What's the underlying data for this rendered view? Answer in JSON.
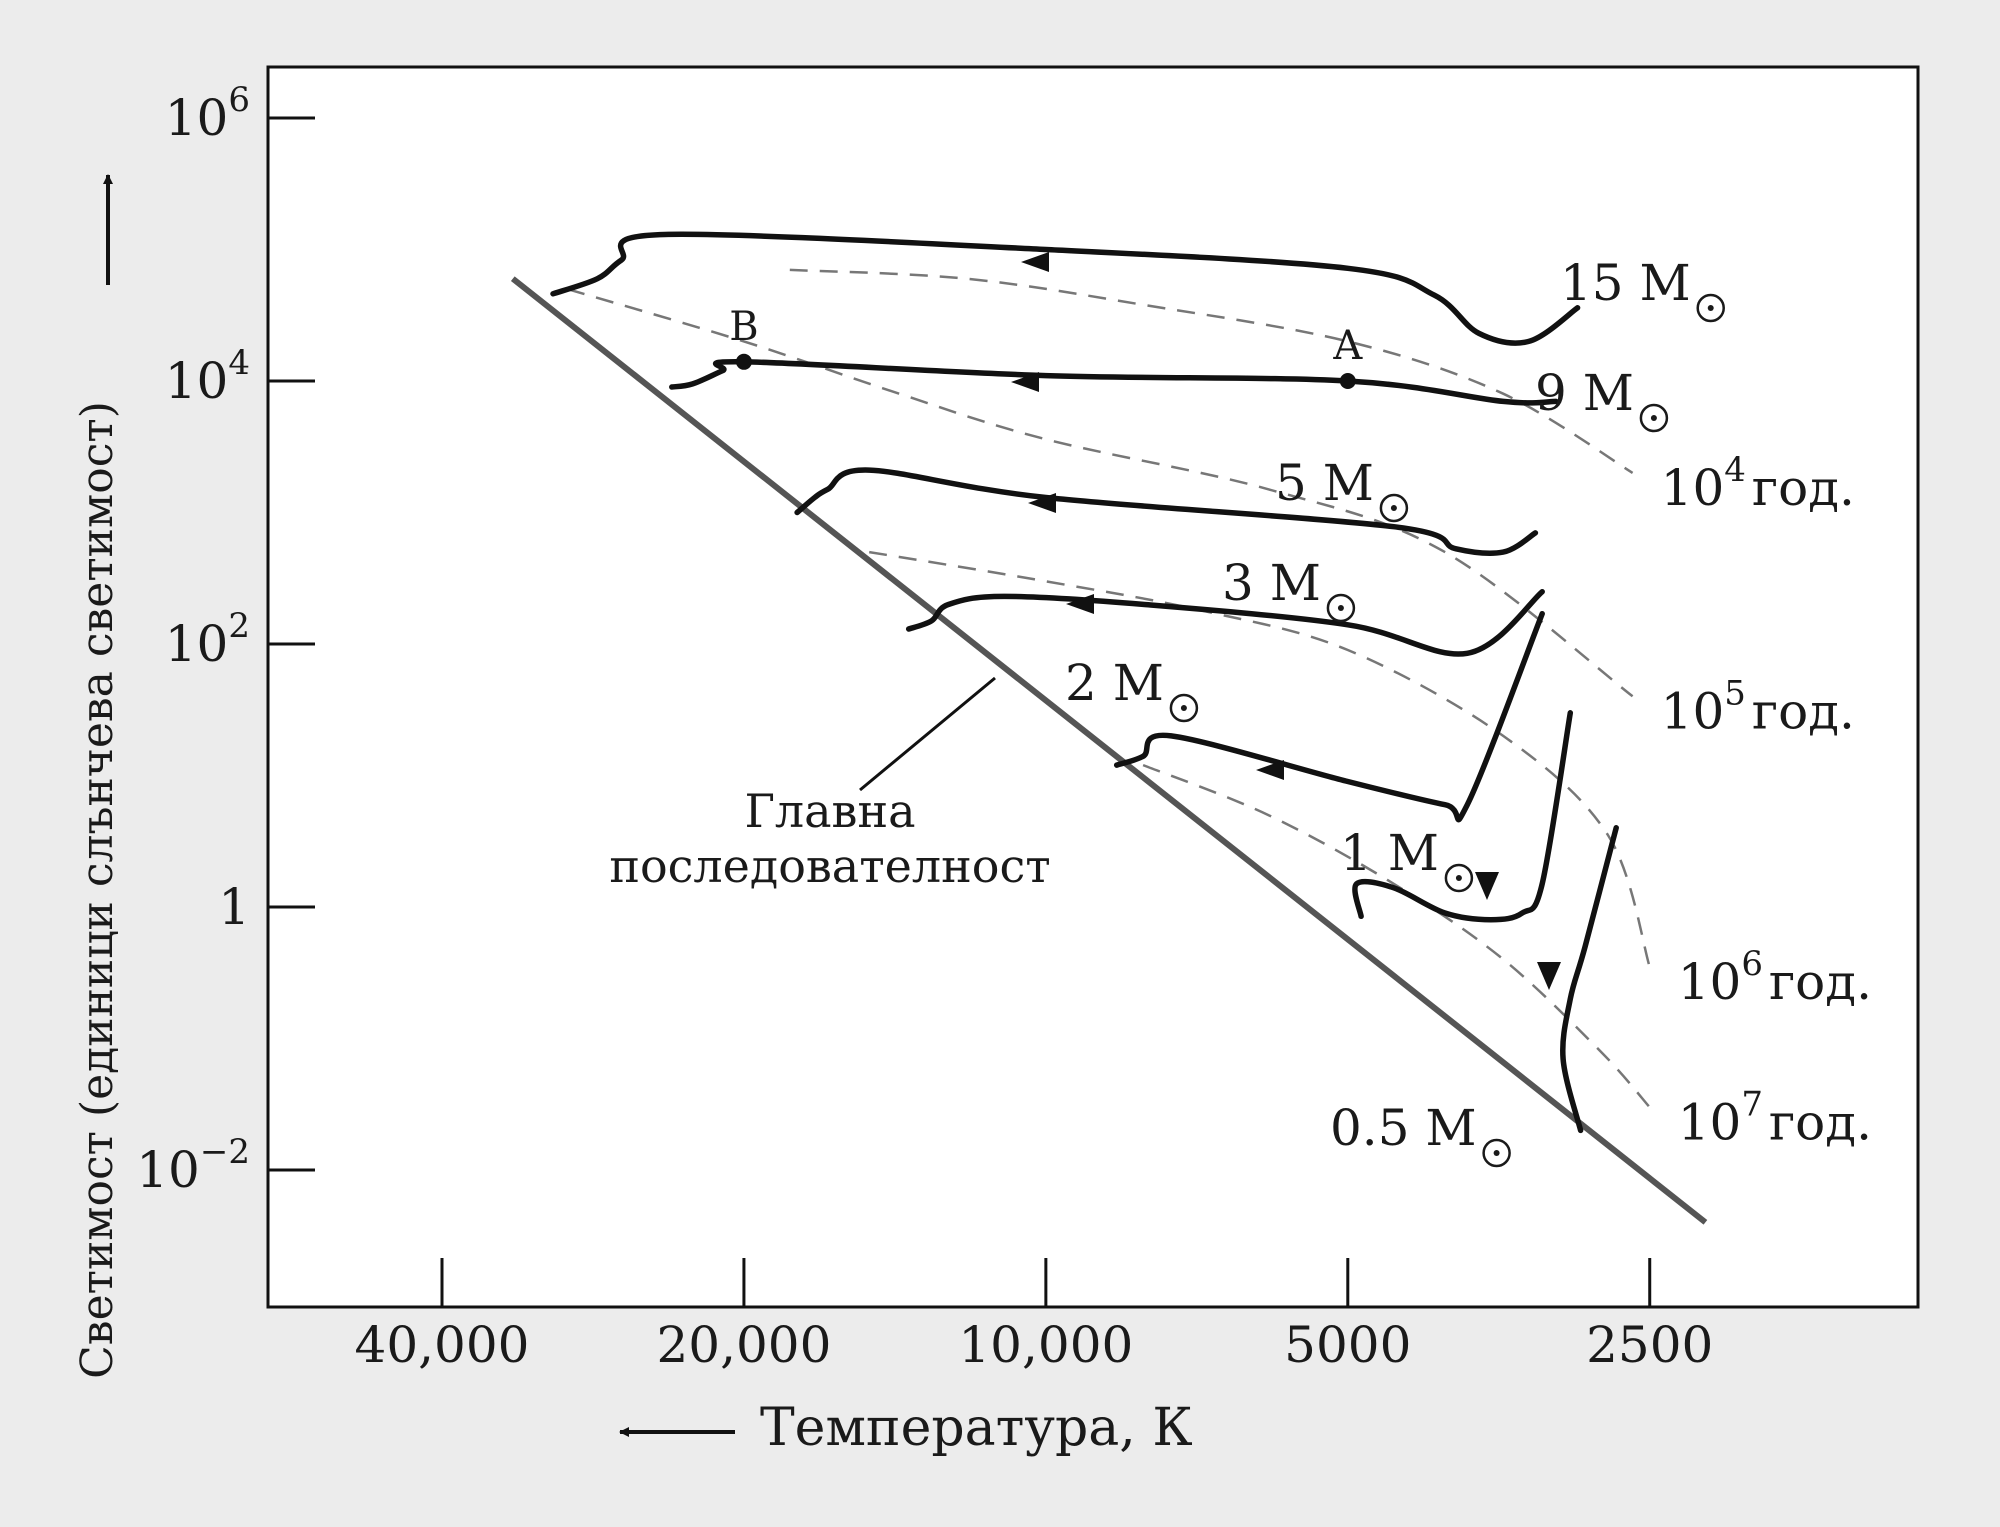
{
  "chart_data": {
    "type": "line",
    "xlabel": "Температура, К",
    "ylabel": "Светимост (единици слънчева светимост)",
    "x_scale": "log-reversed",
    "y_scale": "log",
    "xlim": [
      60000,
      1800
    ],
    "ylim": [
      0.001,
      5000000
    ],
    "x_ticks": [
      {
        "value": 40000,
        "label": "40,000"
      },
      {
        "value": 20000,
        "label": "20,000"
      },
      {
        "value": 10000,
        "label": "10,000"
      },
      {
        "value": 5000,
        "label": "5000"
      },
      {
        "value": 2500,
        "label": "2500"
      }
    ],
    "y_ticks": [
      {
        "value": 1000000,
        "base": "10",
        "exp": "6"
      },
      {
        "value": 10000,
        "base": "10",
        "exp": "4"
      },
      {
        "value": 100,
        "base": "10",
        "exp": "2"
      },
      {
        "value": 1,
        "base": "1",
        "exp": ""
      },
      {
        "value": 0.01,
        "base": "10",
        "exp": "−2"
      }
    ],
    "main_sequence": {
      "label_line1": "Главна",
      "label_line2": "последователност",
      "points": [
        [
          34000,
          60000
        ],
        [
          2200,
          0.004
        ]
      ]
    },
    "series": [
      {
        "name": "15 M⊙",
        "label_mass": "15 M",
        "points": [
          [
            31000,
            46000
          ],
          [
            28000,
            60000
          ],
          [
            26500,
            83000
          ],
          [
            24000,
            130000
          ],
          [
            10000,
            100000
          ],
          [
            5000,
            72000
          ],
          [
            4100,
            45000
          ],
          [
            3700,
            23000
          ],
          [
            3300,
            20000
          ],
          [
            2950,
            36000
          ]
        ]
      },
      {
        "name": "9 M⊙",
        "label_mass": "9 M",
        "points": [
          [
            23600,
            9000
          ],
          [
            22500,
            9500
          ],
          [
            21000,
            12000
          ],
          [
            20000,
            14000
          ],
          [
            10000,
            11000
          ],
          [
            5000,
            10000
          ],
          [
            3500,
            7000
          ],
          [
            3100,
            7000
          ]
        ]
      },
      {
        "name": "5 M⊙",
        "label_mass": "5 M",
        "points": [
          [
            17700,
            1000
          ],
          [
            17000,
            1300
          ],
          [
            16500,
            1500
          ],
          [
            15000,
            2100
          ],
          [
            10000,
            1300
          ],
          [
            4500,
            780
          ],
          [
            3900,
            530
          ],
          [
            3500,
            500
          ],
          [
            3250,
            700
          ]
        ]
      },
      {
        "name": "3 M⊙",
        "label_mass": "3 M",
        "points": [
          [
            13700,
            130
          ],
          [
            13000,
            150
          ],
          [
            12500,
            200
          ],
          [
            11000,
            230
          ],
          [
            8000,
            200
          ],
          [
            5000,
            140
          ],
          [
            3800,
            85
          ],
          [
            3200,
            250
          ]
        ]
      },
      {
        "name": "2 M⊙",
        "label_mass": "2 M",
        "points": [
          [
            8500,
            12
          ],
          [
            8000,
            14
          ],
          [
            7500,
            20
          ],
          [
            5000,
            9
          ],
          [
            4000,
            6
          ],
          [
            3800,
            6
          ],
          [
            3200,
            170
          ]
        ]
      },
      {
        "name": "1 M⊙",
        "label_mass": "1 M",
        "points": [
          [
            4850,
            0.85
          ],
          [
            4900,
            1.5
          ],
          [
            4500,
            1.4
          ],
          [
            4000,
            0.9
          ],
          [
            3600,
            0.8
          ],
          [
            3350,
            0.9
          ],
          [
            3200,
            1.5
          ],
          [
            3000,
            30
          ]
        ]
      },
      {
        "name": "0.5 M⊙",
        "label_mass": "0.5 M",
        "points": [
          [
            2930,
            0.02
          ],
          [
            3050,
            0.07
          ],
          [
            3000,
            0.2
          ],
          [
            2900,
            0.5
          ],
          [
            2700,
            4
          ]
        ]
      }
    ],
    "arrow_label": "A",
    "point_labels": [
      {
        "label": "A",
        "point": [
          5000,
          10000
        ]
      },
      {
        "label": "B",
        "point": [
          20000,
          14000
        ]
      }
    ],
    "isochrones": [
      {
        "base": "10",
        "exp": "4",
        "unit": "год.",
        "points": [
          [
            18000,
            70000
          ],
          [
            12000,
            60000
          ],
          [
            8000,
            38000
          ],
          [
            5000,
            20000
          ],
          [
            3500,
            8000
          ],
          [
            2600,
            2000
          ]
        ]
      },
      {
        "base": "10",
        "exp": "5",
        "unit": "год.",
        "points": [
          [
            30000,
            50000
          ],
          [
            20000,
            20000
          ],
          [
            14000,
            8000
          ],
          [
            10000,
            3600
          ],
          [
            6000,
            1500
          ],
          [
            4000,
            500
          ],
          [
            2600,
            40
          ]
        ]
      },
      {
        "base": "10",
        "exp": "6",
        "unit": "год.",
        "points": [
          [
            15000,
            500
          ],
          [
            10000,
            300
          ],
          [
            7000,
            180
          ],
          [
            5000,
            90
          ],
          [
            3500,
            20
          ],
          [
            2750,
            3.5
          ],
          [
            2500,
            0.35
          ]
        ]
      },
      {
        "base": "10",
        "exp": "7",
        "unit": "год.",
        "points": [
          [
            8000,
            12
          ],
          [
            6000,
            5
          ],
          [
            4500,
            1.5
          ],
          [
            3500,
            0.4
          ],
          [
            2800,
            0.08
          ],
          [
            2500,
            0.03
          ]
        ]
      }
    ],
    "legend": "none",
    "grid": false
  }
}
